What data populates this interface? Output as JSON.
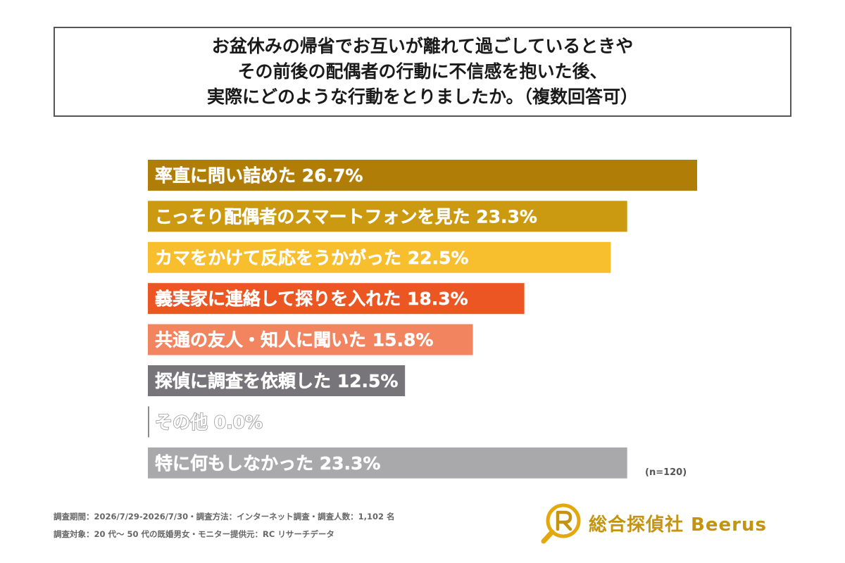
{
  "title": {
    "lines": [
      "お盆休みの帰省でお互いが離れて過ごしているときや",
      "その前後の配偶者の行動に不信感を抱いた後、",
      "実際にどのような行動をとりましたか。（複数回答可）"
    ]
  },
  "chart_data": {
    "type": "bar",
    "orientation": "horizontal",
    "categories": [
      "率直に問い詰めた",
      "こっそり配偶者のスマートフォンを見た",
      "カマをかけて反応をうかがった",
      "義実家に連絡して探りを入れた",
      "共通の友人・知人に聞いた",
      "探偵に調査を依頼した",
      "その他",
      "特に何もしなかった"
    ],
    "values": [
      26.7,
      23.3,
      22.5,
      18.3,
      15.8,
      12.5,
      0.0,
      23.3
    ],
    "value_labels": [
      "26.7%",
      "23.3%",
      "22.5%",
      "18.3%",
      "15.8%",
      "12.5%",
      "0.0%",
      "23.3%"
    ],
    "colors": [
      "#b07e06",
      "#cc9a10",
      "#f7be2e",
      "#ec5623",
      "#f2845f",
      "#77757a",
      "#8c8c8c",
      "#a9a8ab"
    ],
    "unit": "%",
    "xlim": [
      0,
      26.7
    ],
    "grid": false,
    "legend": "none"
  },
  "sample_note": "(n=120)",
  "footer": {
    "line1": "調査期間：2026/7/29-2026/7/30・調査方法：インターネット調査・調査人数：1,102 名",
    "line2": "調査対象：20 代〜 50 代の既婚男女・モニター提供元：RC リサーチデータ"
  },
  "brand": {
    "name": "総合探偵社 Beerus",
    "mark_icon": "magnifier-r-logo-icon",
    "color": "#c49410"
  }
}
